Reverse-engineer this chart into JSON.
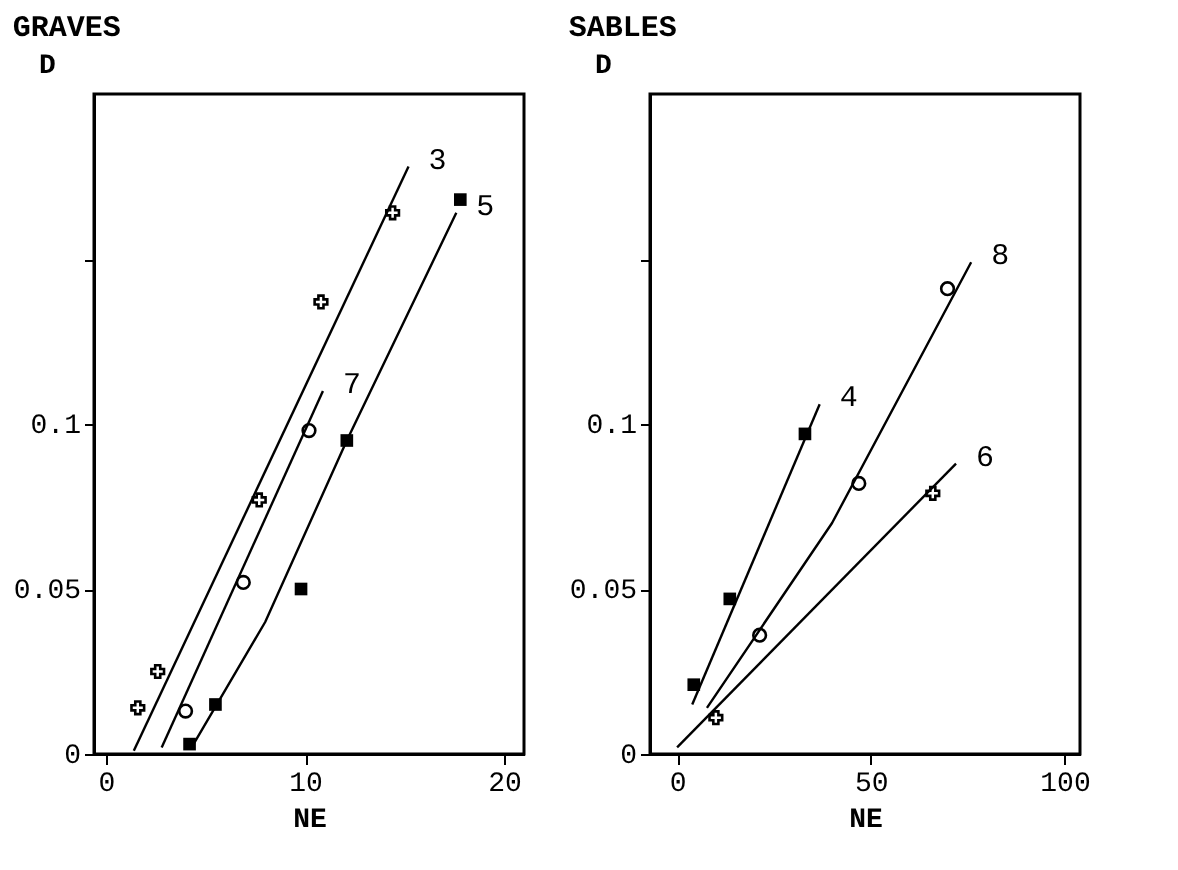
{
  "chart_data": [
    {
      "type": "line",
      "title": "GRAVES",
      "xlabel": "NE",
      "ylabel": "D",
      "xlim": [
        -0.6,
        21
      ],
      "xticks": [
        0,
        10,
        20
      ],
      "ylim": [
        0,
        0.2
      ],
      "yticks": [
        {
          "value": 0,
          "label": "0"
        },
        0.05,
        {
          "value": 0.1,
          "label": "0.1"
        },
        {
          "value": 0.15,
          "label": null
        }
      ],
      "grid": false,
      "series": [
        {
          "type": "line",
          "name": "3",
          "color": "#000000",
          "marker": "none",
          "x": [
            1.4,
            15.2
          ],
          "values": [
            0.001,
            0.178
          ]
        },
        {
          "type": "scatter",
          "color": "#000000",
          "marker": "cross",
          "x": [
            1.6,
            2.6,
            7.7,
            10.8,
            14.4
          ],
          "values": [
            0.014,
            0.025,
            0.077,
            0.137,
            0.164
          ]
        },
        {
          "type": "line",
          "name": "7",
          "color": "#000000",
          "marker": "none",
          "x": [
            2.8,
            10.9
          ],
          "values": [
            0.002,
            0.11
          ]
        },
        {
          "type": "scatter",
          "color": "#000000",
          "marker": "circle",
          "x": [
            4.0,
            6.9,
            10.2
          ],
          "values": [
            0.013,
            0.052,
            0.098
          ]
        },
        {
          "type": "line",
          "name": "5",
          "color": "#000000",
          "marker": "none",
          "x": [
            4.4,
            8.0,
            12.1,
            17.6
          ],
          "values": [
            0.003,
            0.04,
            0.095,
            0.164
          ]
        },
        {
          "type": "scatter",
          "color": "#000000",
          "marker": "square",
          "x": [
            4.2,
            5.5,
            9.8,
            12.1,
            17.8
          ],
          "values": [
            0.003,
            0.015,
            0.05,
            0.095,
            0.168
          ]
        }
      ]
    },
    {
      "type": "line",
      "title": "SABLES",
      "xlabel": "NE",
      "ylabel": "D",
      "xlim": [
        -7,
        104
      ],
      "xticks": [
        0,
        50,
        100
      ],
      "ylim": [
        0,
        0.2
      ],
      "yticks": [
        {
          "value": 0,
          "label": "0"
        },
        0.05,
        {
          "value": 0.1,
          "label": "0.1"
        },
        {
          "value": 0.15,
          "label": null
        }
      ],
      "grid": false,
      "series": [
        {
          "type": "line",
          "name": "4",
          "color": "#000000",
          "marker": "none",
          "x": [
            3.9,
            36.8
          ],
          "values": [
            0.015,
            0.106
          ]
        },
        {
          "type": "scatter",
          "color": "#000000",
          "marker": "square",
          "x": [
            4.3,
            13.6,
            33.0
          ],
          "values": [
            0.021,
            0.047,
            0.097
          ]
        },
        {
          "type": "line",
          "name": "8",
          "color": "#000000",
          "marker": "none",
          "x": [
            7.7,
            40.0,
            75.9
          ],
          "values": [
            0.014,
            0.07,
            0.149
          ]
        },
        {
          "type": "scatter",
          "color": "#000000",
          "marker": "circle",
          "x": [
            21.3,
            46.9,
            69.8
          ],
          "values": [
            0.036,
            0.082,
            0.141
          ]
        },
        {
          "type": "line",
          "name": "6",
          "color": "#000000",
          "marker": "none",
          "x": [
            0,
            72
          ],
          "values": [
            0.002,
            0.088
          ]
        },
        {
          "type": "scatter",
          "color": "#000000",
          "marker": "cross",
          "x": [
            10,
            66
          ],
          "values": [
            0.011,
            0.079
          ]
        }
      ]
    }
  ]
}
